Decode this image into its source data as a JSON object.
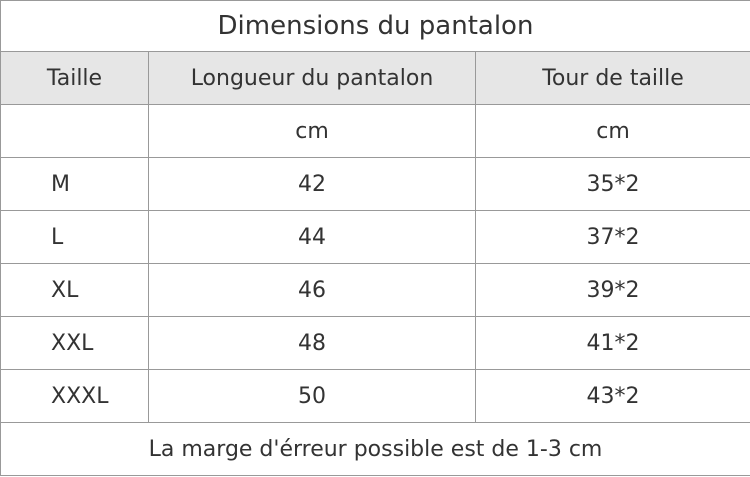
{
  "title": "Dimensions du pantalon",
  "table": {
    "headers": [
      "Taille",
      "Longueur du pantalon",
      "Tour de taille"
    ],
    "units": [
      "",
      "cm",
      "cm"
    ],
    "rows": [
      [
        "M",
        "42",
        "35*2"
      ],
      [
        "L",
        "44",
        "37*2"
      ],
      [
        "XL",
        "46",
        "39*2"
      ],
      [
        "XXL",
        "48",
        "41*2"
      ],
      [
        "XXXL",
        "50",
        "43*2"
      ]
    ]
  },
  "footnote": "La marge d'érreur possible est de 1-3 cm"
}
